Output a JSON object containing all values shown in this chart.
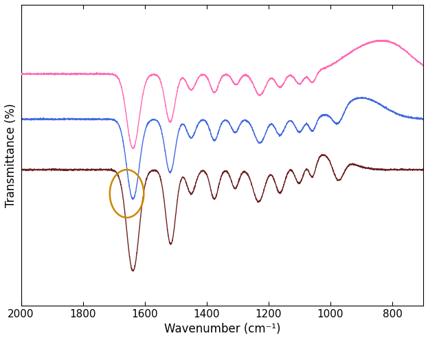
{
  "title": "",
  "xlabel": "Wavenumber (cm⁻¹)",
  "ylabel": "Transmittance (%)",
  "xlim": [
    2000,
    700
  ],
  "xticks": [
    2000,
    1800,
    1600,
    1400,
    1200,
    1000,
    800
  ],
  "xticklabels": [
    "2000",
    "1800",
    "1600",
    "1400",
    "1200",
    "1000",
    "800"
  ],
  "colors": {
    "pink": "#FF69B4",
    "blue": "#4169E1",
    "brown": "#6B2020"
  },
  "circle_color": "#CC8800",
  "background_color": "#FFFFFF",
  "line_width": 1.0,
  "pink_baseline": 0.82,
  "blue_baseline": 0.65,
  "brown_baseline": 0.46,
  "ylim": [
    -0.05,
    1.08
  ]
}
